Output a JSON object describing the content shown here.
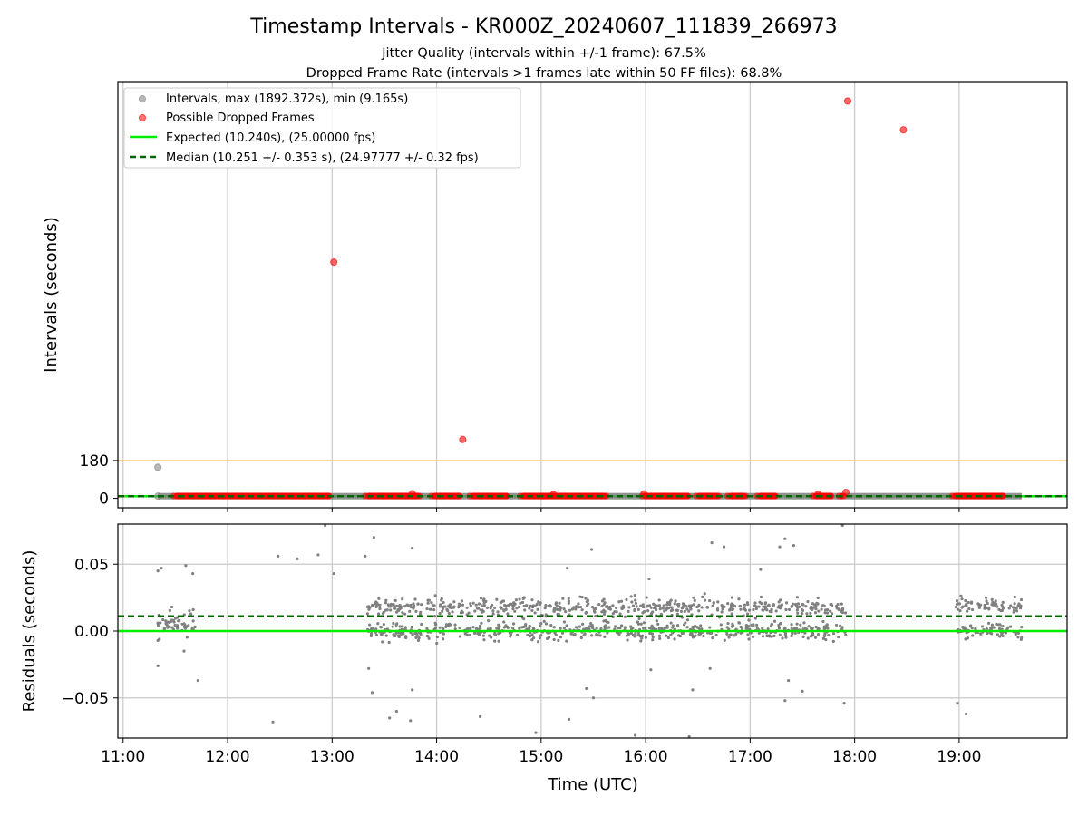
{
  "title": "Timestamp Intervals - KR000Z_20240607_111839_266973",
  "subtitle_1": "Jitter Quality (intervals within +/-1 frame): 67.5%",
  "subtitle_2": "Dropped Frame Rate (intervals >1 frames late within 50 FF files): 68.8%",
  "colors": {
    "intervals": "#808080",
    "dropped": "#ff0000",
    "expected": "#00ee00",
    "median": "#006400",
    "threshold": "#ffc966",
    "grid": "#c8c8c8"
  },
  "chart_data": [
    {
      "type": "scatter",
      "panel": "top",
      "xlabel": "",
      "ylabel": "Intervals (seconds)",
      "x_range": [
        "10:57",
        "20:02"
      ],
      "y_range": [
        -45,
        1985
      ],
      "ytick_labels": [
        "0",
        "180"
      ],
      "grid": "vertical",
      "legend_position": "upper-left",
      "legend": [
        "Intervals, max (1892.372s), min (9.165s)",
        "Possible Dropped Frames",
        "Expected (10.240s), (25.00000 fps)",
        "Median (10.251 +/- 0.353 s), (24.97777 +/- 0.32 fps)"
      ],
      "reference_lines": {
        "expected": 10.24,
        "median": 10.251,
        "threshold": 180
      },
      "series": [
        {
          "name": "Intervals",
          "color": "#808080",
          "points": [
            {
              "x": "11:20",
              "y": 10
            },
            {
              "x": "11:20",
              "y": 148
            }
          ],
          "bands": [
            {
              "x_start": "11:20",
              "x_end": "19:36",
              "y": 10.25
            }
          ]
        },
        {
          "name": "Possible Dropped Frames",
          "color": "#ff0000",
          "points": [
            {
              "x": "13:01",
              "y": 1125
            },
            {
              "x": "14:15",
              "y": 280
            },
            {
              "x": "17:56",
              "y": 1892.4
            },
            {
              "x": "18:28",
              "y": 1755
            },
            {
              "x": "13:46",
              "y": 22
            },
            {
              "x": "15:07",
              "y": 18
            },
            {
              "x": "15:59",
              "y": 21
            },
            {
              "x": "17:39",
              "y": 19
            },
            {
              "x": "17:55",
              "y": 28
            }
          ],
          "bands": [
            {
              "x_start": "11:29",
              "x_end": "13:00",
              "y": 11
            },
            {
              "x_start": "13:19",
              "x_end": "13:51",
              "y": 11
            },
            {
              "x_start": "13:57",
              "x_end": "14:15",
              "y": 11
            },
            {
              "x_start": "14:19",
              "x_end": "14:42",
              "y": 11
            },
            {
              "x_start": "14:48",
              "x_end": "15:38",
              "y": 11
            },
            {
              "x_start": "15:58",
              "x_end": "16:26",
              "y": 11
            },
            {
              "x_start": "16:29",
              "x_end": "16:43",
              "y": 11
            },
            {
              "x_start": "16:47",
              "x_end": "16:58",
              "y": 11
            },
            {
              "x_start": "17:04",
              "x_end": "17:16",
              "y": 11
            },
            {
              "x_start": "17:36",
              "x_end": "17:48",
              "y": 11
            },
            {
              "x_start": "17:51",
              "x_end": "17:54",
              "y": 11
            },
            {
              "x_start": "18:56",
              "x_end": "19:27",
              "y": 11
            }
          ]
        }
      ]
    },
    {
      "type": "scatter",
      "panel": "bottom",
      "xlabel": "Time (UTC)",
      "ylabel": "Residuals (seconds)",
      "x_range": [
        "10:57",
        "20:02"
      ],
      "y_range": [
        -0.08,
        0.08
      ],
      "xtick_labels": [
        "11:00",
        "12:00",
        "13:00",
        "14:00",
        "15:00",
        "16:00",
        "17:00",
        "18:00",
        "19:00"
      ],
      "ytick_labels": [
        "−0.05",
        "0.00",
        "0.05"
      ],
      "grid": "both",
      "reference_lines": {
        "expected": 0.0,
        "median": 0.011
      },
      "series": [
        {
          "name": "Residuals",
          "color": "#808080",
          "clusters": [
            {
              "x_start": "11:20",
              "x_end": "11:42",
              "y_main": 0.005,
              "y_spread": 0.008,
              "count": 50
            },
            {
              "x_start": "13:20",
              "x_end": "17:55",
              "y_upper": 0.018,
              "y_lower": 0.0,
              "y_spread": 0.012,
              "count": 1100
            },
            {
              "x_start": "18:58",
              "x_end": "19:36",
              "y_upper": 0.019,
              "y_lower": 0.0,
              "y_spread": 0.01,
              "count": 140
            }
          ],
          "outliers": [
            {
              "x": "11:20",
              "y": 0.045
            },
            {
              "x": "11:22",
              "y": 0.047
            },
            {
              "x": "11:20",
              "y": -0.026
            },
            {
              "x": "11:20",
              "y": -0.007
            },
            {
              "x": "11:28",
              "y": 0.018
            },
            {
              "x": "11:36",
              "y": 0.049
            },
            {
              "x": "11:40",
              "y": 0.043
            },
            {
              "x": "11:43",
              "y": -0.037
            },
            {
              "x": "11:35",
              "y": -0.015
            },
            {
              "x": "12:26",
              "y": -0.068
            },
            {
              "x": "12:29",
              "y": 0.056
            },
            {
              "x": "12:40",
              "y": 0.054
            },
            {
              "x": "12:52",
              "y": 0.057
            },
            {
              "x": "12:56",
              "y": 0.079
            },
            {
              "x": "13:01",
              "y": 0.043
            },
            {
              "x": "13:19",
              "y": 0.056
            },
            {
              "x": "13:21",
              "y": -0.028
            },
            {
              "x": "13:24",
              "y": 0.07
            },
            {
              "x": "13:23",
              "y": -0.046
            },
            {
              "x": "13:33",
              "y": -0.065
            },
            {
              "x": "13:37",
              "y": -0.06
            },
            {
              "x": "13:46",
              "y": 0.062
            },
            {
              "x": "13:46",
              "y": -0.044
            },
            {
              "x": "13:45",
              "y": -0.067
            },
            {
              "x": "14:25",
              "y": -0.064
            },
            {
              "x": "14:57",
              "y": -0.076
            },
            {
              "x": "15:15",
              "y": 0.047
            },
            {
              "x": "15:16",
              "y": -0.066
            },
            {
              "x": "15:26",
              "y": -0.043
            },
            {
              "x": "15:29",
              "y": 0.061
            },
            {
              "x": "15:30",
              "y": -0.05
            },
            {
              "x": "15:54",
              "y": -0.078
            },
            {
              "x": "16:02",
              "y": 0.039
            },
            {
              "x": "16:03",
              "y": -0.029
            },
            {
              "x": "16:25",
              "y": -0.079
            },
            {
              "x": "16:27",
              "y": -0.044
            },
            {
              "x": "16:37",
              "y": -0.028
            },
            {
              "x": "16:38",
              "y": 0.066
            },
            {
              "x": "16:45",
              "y": 0.063
            },
            {
              "x": "17:06",
              "y": 0.046
            },
            {
              "x": "17:17",
              "y": 0.063
            },
            {
              "x": "17:20",
              "y": 0.069
            },
            {
              "x": "17:20",
              "y": -0.052
            },
            {
              "x": "17:22",
              "y": -0.037
            },
            {
              "x": "17:25",
              "y": 0.064
            },
            {
              "x": "17:30",
              "y": -0.045
            },
            {
              "x": "17:53",
              "y": 0.079
            },
            {
              "x": "17:54",
              "y": -0.054
            },
            {
              "x": "18:59",
              "y": -0.054
            },
            {
              "x": "19:04",
              "y": -0.062
            }
          ]
        }
      ]
    }
  ]
}
